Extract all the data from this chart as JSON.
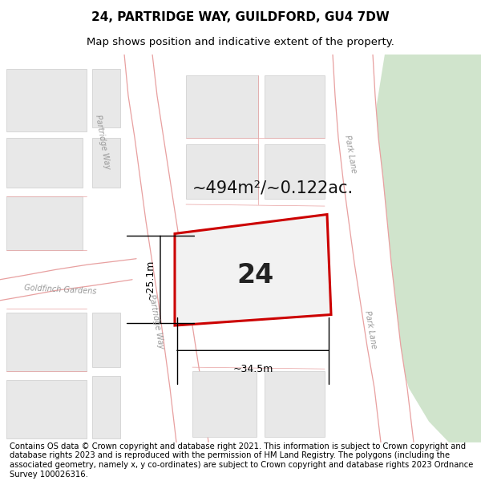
{
  "title": "24, PARTRIDGE WAY, GUILDFORD, GU4 7DW",
  "subtitle": "Map shows position and indicative extent of the property.",
  "footer": "Contains OS data © Crown copyright and database right 2021. This information is subject to Crown copyright and database rights 2023 and is reproduced with the permission of HM Land Registry. The polygons (including the associated geometry, namely x, y co-ordinates) are subject to Crown copyright and database rights 2023 Ordnance Survey 100026316.",
  "area_label": "~494m²/~0.122ac.",
  "number_label": "24",
  "dim_width": "~34.5m",
  "dim_height": "~25.1m",
  "bg_color": "#ffffff",
  "block_fill": "#e8e8e8",
  "block_edge": "#cccccc",
  "road_line_color": "#e8a0a0",
  "property_stroke": "#cc0000",
  "property_fill": "#f2f2f2",
  "green_fill": "#d0e4cc",
  "road_text_color": "#999999",
  "title_fontsize": 11,
  "subtitle_fontsize": 9.5,
  "footer_fontsize": 7.2,
  "area_fontsize": 15,
  "number_fontsize": 24,
  "dim_fontsize": 9
}
